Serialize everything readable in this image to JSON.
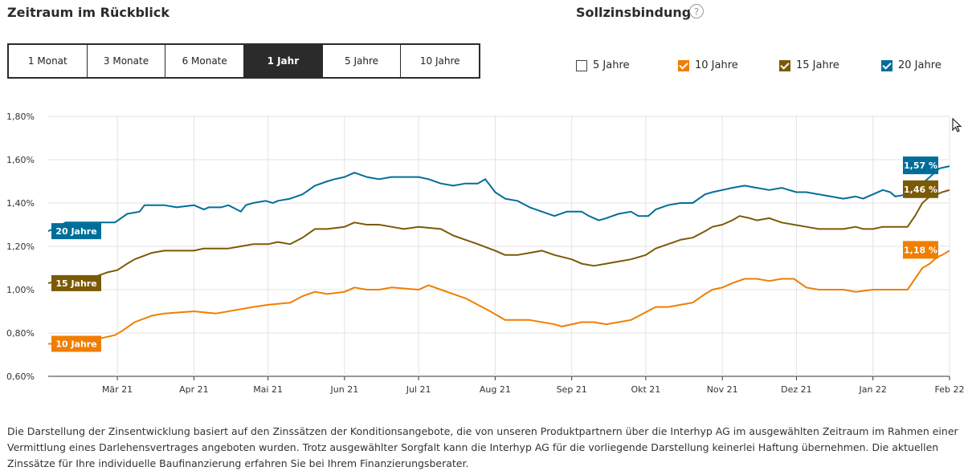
{
  "header": {
    "title": "Zeitraum im Rückblick",
    "fixation_title": "Sollzinsbindung",
    "help_glyph": "?"
  },
  "periods": [
    {
      "label": "1 Monat",
      "active": false
    },
    {
      "label": "3 Monate",
      "active": false
    },
    {
      "label": "6 Monate",
      "active": false
    },
    {
      "label": "1 Jahr",
      "active": true
    },
    {
      "label": "5 Jahre",
      "active": false
    },
    {
      "label": "10 Jahre",
      "active": false
    }
  ],
  "fixations": [
    {
      "label": "5 Jahre",
      "checked": false,
      "color": "#ffffff"
    },
    {
      "label": "10 Jahre",
      "checked": true,
      "color": "#f07e00"
    },
    {
      "label": "15 Jahre",
      "checked": true,
      "color": "#7a5a05"
    },
    {
      "label": "20 Jahre",
      "checked": true,
      "color": "#006e9a"
    }
  ],
  "chart_data": {
    "type": "line",
    "ylim": [
      0.6,
      1.8
    ],
    "yticks": [
      0.6,
      0.8,
      1.0,
      1.2,
      1.4,
      1.6,
      1.8
    ],
    "ytick_labels": [
      "0,60%",
      "0,80%",
      "1,00%",
      "1,20%",
      "1,40%",
      "1,60%",
      "1,80%"
    ],
    "xlim": [
      "2021-02-01",
      "2022-02-01"
    ],
    "xticks": [
      "2021-03-01",
      "2021-04-01",
      "2021-05-01",
      "2021-06-01",
      "2021-07-01",
      "2021-08-01",
      "2021-09-01",
      "2021-10-01",
      "2021-11-01",
      "2021-12-01",
      "2022-01-01",
      "2022-02-01"
    ],
    "xtick_labels": [
      "Mär 21",
      "Apr 21",
      "Mai 21",
      "Jun 21",
      "Jul 21",
      "Aug 21",
      "Sep 21",
      "Okt 21",
      "Nov 21",
      "Dez 21",
      "Jan 22",
      "Feb 22"
    ],
    "grid": true,
    "series": [
      {
        "name": "20 Jahre",
        "color": "#006e9a",
        "end_label": "1,57 %",
        "points": [
          [
            "2021-02-01",
            1.27
          ],
          [
            "2021-02-05",
            1.29
          ],
          [
            "2021-02-08",
            1.31
          ],
          [
            "2021-02-28",
            1.31
          ],
          [
            "2021-03-05",
            1.35
          ],
          [
            "2021-03-10",
            1.36
          ],
          [
            "2021-03-12",
            1.39
          ],
          [
            "2021-03-20",
            1.39
          ],
          [
            "2021-03-25",
            1.38
          ],
          [
            "2021-04-01",
            1.39
          ],
          [
            "2021-04-05",
            1.37
          ],
          [
            "2021-04-07",
            1.38
          ],
          [
            "2021-04-12",
            1.38
          ],
          [
            "2021-04-15",
            1.39
          ],
          [
            "2021-04-20",
            1.36
          ],
          [
            "2021-04-22",
            1.39
          ],
          [
            "2021-04-25",
            1.4
          ],
          [
            "2021-04-30",
            1.41
          ],
          [
            "2021-05-03",
            1.4
          ],
          [
            "2021-05-05",
            1.41
          ],
          [
            "2021-05-10",
            1.42
          ],
          [
            "2021-05-15",
            1.44
          ],
          [
            "2021-05-20",
            1.48
          ],
          [
            "2021-05-25",
            1.5
          ],
          [
            "2021-05-28",
            1.51
          ],
          [
            "2021-06-01",
            1.52
          ],
          [
            "2021-06-05",
            1.54
          ],
          [
            "2021-06-10",
            1.52
          ],
          [
            "2021-06-15",
            1.51
          ],
          [
            "2021-06-20",
            1.52
          ],
          [
            "2021-07-01",
            1.52
          ],
          [
            "2021-07-05",
            1.51
          ],
          [
            "2021-07-10",
            1.49
          ],
          [
            "2021-07-15",
            1.48
          ],
          [
            "2021-07-20",
            1.49
          ],
          [
            "2021-07-25",
            1.49
          ],
          [
            "2021-07-28",
            1.51
          ],
          [
            "2021-08-01",
            1.45
          ],
          [
            "2021-08-05",
            1.42
          ],
          [
            "2021-08-10",
            1.41
          ],
          [
            "2021-08-15",
            1.38
          ],
          [
            "2021-08-20",
            1.36
          ],
          [
            "2021-08-25",
            1.34
          ],
          [
            "2021-08-30",
            1.36
          ],
          [
            "2021-09-05",
            1.36
          ],
          [
            "2021-09-08",
            1.34
          ],
          [
            "2021-09-12",
            1.32
          ],
          [
            "2021-09-15",
            1.33
          ],
          [
            "2021-09-20",
            1.35
          ],
          [
            "2021-09-25",
            1.36
          ],
          [
            "2021-09-28",
            1.34
          ],
          [
            "2021-10-02",
            1.34
          ],
          [
            "2021-10-05",
            1.37
          ],
          [
            "2021-10-10",
            1.39
          ],
          [
            "2021-10-15",
            1.4
          ],
          [
            "2021-10-20",
            1.4
          ],
          [
            "2021-10-25",
            1.44
          ],
          [
            "2021-10-28",
            1.45
          ],
          [
            "2021-11-01",
            1.46
          ],
          [
            "2021-11-05",
            1.47
          ],
          [
            "2021-11-10",
            1.48
          ],
          [
            "2021-11-15",
            1.47
          ],
          [
            "2021-11-20",
            1.46
          ],
          [
            "2021-11-25",
            1.47
          ],
          [
            "2021-11-28",
            1.46
          ],
          [
            "2021-12-01",
            1.45
          ],
          [
            "2021-12-05",
            1.45
          ],
          [
            "2021-12-10",
            1.44
          ],
          [
            "2021-12-15",
            1.43
          ],
          [
            "2021-12-20",
            1.42
          ],
          [
            "2021-12-25",
            1.43
          ],
          [
            "2021-12-28",
            1.42
          ],
          [
            "2022-01-01",
            1.44
          ],
          [
            "2022-01-05",
            1.46
          ],
          [
            "2022-01-08",
            1.45
          ],
          [
            "2022-01-10",
            1.43
          ],
          [
            "2022-01-15",
            1.44
          ],
          [
            "2022-01-20",
            1.47
          ],
          [
            "2022-01-22",
            1.5
          ],
          [
            "2022-01-25",
            1.53
          ],
          [
            "2022-01-28",
            1.56
          ],
          [
            "2022-02-01",
            1.57
          ]
        ]
      },
      {
        "name": "15 Jahre",
        "color": "#7a5a05",
        "end_label": "1,46 %",
        "points": [
          [
            "2021-02-01",
            1.03
          ],
          [
            "2021-02-05",
            1.04
          ],
          [
            "2021-02-10",
            1.05
          ],
          [
            "2021-02-20",
            1.06
          ],
          [
            "2021-02-25",
            1.08
          ],
          [
            "2021-03-01",
            1.09
          ],
          [
            "2021-03-05",
            1.12
          ],
          [
            "2021-03-08",
            1.14
          ],
          [
            "2021-03-15",
            1.17
          ],
          [
            "2021-03-20",
            1.18
          ],
          [
            "2021-04-01",
            1.18
          ],
          [
            "2021-04-05",
            1.19
          ],
          [
            "2021-04-15",
            1.19
          ],
          [
            "2021-04-20",
            1.2
          ],
          [
            "2021-04-25",
            1.21
          ],
          [
            "2021-05-01",
            1.21
          ],
          [
            "2021-05-05",
            1.22
          ],
          [
            "2021-05-10",
            1.21
          ],
          [
            "2021-05-15",
            1.24
          ],
          [
            "2021-05-20",
            1.28
          ],
          [
            "2021-05-25",
            1.28
          ],
          [
            "2021-06-01",
            1.29
          ],
          [
            "2021-06-05",
            1.31
          ],
          [
            "2021-06-10",
            1.3
          ],
          [
            "2021-06-15",
            1.3
          ],
          [
            "2021-06-20",
            1.29
          ],
          [
            "2021-06-25",
            1.28
          ],
          [
            "2021-07-01",
            1.29
          ],
          [
            "2021-07-10",
            1.28
          ],
          [
            "2021-07-15",
            1.25
          ],
          [
            "2021-07-20",
            1.23
          ],
          [
            "2021-07-25",
            1.21
          ],
          [
            "2021-08-01",
            1.18
          ],
          [
            "2021-08-05",
            1.16
          ],
          [
            "2021-08-10",
            1.16
          ],
          [
            "2021-08-15",
            1.17
          ],
          [
            "2021-08-20",
            1.18
          ],
          [
            "2021-08-25",
            1.16
          ],
          [
            "2021-09-01",
            1.14
          ],
          [
            "2021-09-05",
            1.12
          ],
          [
            "2021-09-10",
            1.11
          ],
          [
            "2021-09-15",
            1.12
          ],
          [
            "2021-09-20",
            1.13
          ],
          [
            "2021-09-25",
            1.14
          ],
          [
            "2021-10-01",
            1.16
          ],
          [
            "2021-10-05",
            1.19
          ],
          [
            "2021-10-10",
            1.21
          ],
          [
            "2021-10-15",
            1.23
          ],
          [
            "2021-10-20",
            1.24
          ],
          [
            "2021-10-25",
            1.27
          ],
          [
            "2021-10-28",
            1.29
          ],
          [
            "2021-11-01",
            1.3
          ],
          [
            "2021-11-05",
            1.32
          ],
          [
            "2021-11-08",
            1.34
          ],
          [
            "2021-11-12",
            1.33
          ],
          [
            "2021-11-15",
            1.32
          ],
          [
            "2021-11-20",
            1.33
          ],
          [
            "2021-11-25",
            1.31
          ],
          [
            "2021-11-30",
            1.3
          ],
          [
            "2021-12-05",
            1.29
          ],
          [
            "2021-12-10",
            1.28
          ],
          [
            "2021-12-15",
            1.28
          ],
          [
            "2021-12-20",
            1.28
          ],
          [
            "2021-12-25",
            1.29
          ],
          [
            "2021-12-28",
            1.28
          ],
          [
            "2022-01-01",
            1.28
          ],
          [
            "2022-01-05",
            1.29
          ],
          [
            "2022-01-10",
            1.29
          ],
          [
            "2022-01-15",
            1.29
          ],
          [
            "2022-01-18",
            1.34
          ],
          [
            "2022-01-21",
            1.4
          ],
          [
            "2022-01-24",
            1.43
          ],
          [
            "2022-01-27",
            1.44
          ],
          [
            "2022-01-29",
            1.45
          ],
          [
            "2022-02-01",
            1.46
          ]
        ]
      },
      {
        "name": "10 Jahre",
        "color": "#f07e00",
        "end_label": "1,18 %",
        "points": [
          [
            "2021-02-01",
            0.75
          ],
          [
            "2021-02-10",
            0.75
          ],
          [
            "2021-02-20",
            0.77
          ],
          [
            "2021-02-28",
            0.79
          ],
          [
            "2021-03-03",
            0.81
          ],
          [
            "2021-03-08",
            0.85
          ],
          [
            "2021-03-15",
            0.88
          ],
          [
            "2021-03-20",
            0.89
          ],
          [
            "2021-04-01",
            0.9
          ],
          [
            "2021-04-10",
            0.89
          ],
          [
            "2021-04-20",
            0.91
          ],
          [
            "2021-04-25",
            0.92
          ],
          [
            "2021-05-01",
            0.93
          ],
          [
            "2021-05-10",
            0.94
          ],
          [
            "2021-05-15",
            0.97
          ],
          [
            "2021-05-20",
            0.99
          ],
          [
            "2021-05-25",
            0.98
          ],
          [
            "2021-06-01",
            0.99
          ],
          [
            "2021-06-05",
            1.01
          ],
          [
            "2021-06-10",
            1.0
          ],
          [
            "2021-06-15",
            1.0
          ],
          [
            "2021-06-20",
            1.01
          ],
          [
            "2021-07-01",
            1.0
          ],
          [
            "2021-07-05",
            1.02
          ],
          [
            "2021-07-10",
            1.0
          ],
          [
            "2021-07-15",
            0.98
          ],
          [
            "2021-07-20",
            0.96
          ],
          [
            "2021-07-25",
            0.93
          ],
          [
            "2021-07-30",
            0.9
          ],
          [
            "2021-08-05",
            0.86
          ],
          [
            "2021-08-15",
            0.86
          ],
          [
            "2021-08-25",
            0.84
          ],
          [
            "2021-08-28",
            0.83
          ],
          [
            "2021-09-05",
            0.85
          ],
          [
            "2021-09-10",
            0.85
          ],
          [
            "2021-09-15",
            0.84
          ],
          [
            "2021-09-20",
            0.85
          ],
          [
            "2021-09-25",
            0.86
          ],
          [
            "2021-09-30",
            0.89
          ],
          [
            "2021-10-05",
            0.92
          ],
          [
            "2021-10-10",
            0.92
          ],
          [
            "2021-10-15",
            0.93
          ],
          [
            "2021-10-20",
            0.94
          ],
          [
            "2021-10-25",
            0.98
          ],
          [
            "2021-10-28",
            1.0
          ],
          [
            "2021-11-01",
            1.01
          ],
          [
            "2021-11-05",
            1.03
          ],
          [
            "2021-11-10",
            1.05
          ],
          [
            "2021-11-15",
            1.05
          ],
          [
            "2021-11-20",
            1.04
          ],
          [
            "2021-11-25",
            1.05
          ],
          [
            "2021-11-30",
            1.05
          ],
          [
            "2021-12-05",
            1.01
          ],
          [
            "2021-12-10",
            1.0
          ],
          [
            "2021-12-15",
            1.0
          ],
          [
            "2021-12-20",
            1.0
          ],
          [
            "2021-12-25",
            0.99
          ],
          [
            "2022-01-01",
            1.0
          ],
          [
            "2022-01-10",
            1.0
          ],
          [
            "2022-01-15",
            1.0
          ],
          [
            "2022-01-18",
            1.05
          ],
          [
            "2022-01-21",
            1.1
          ],
          [
            "2022-01-24",
            1.12
          ],
          [
            "2022-01-27",
            1.15
          ],
          [
            "2022-01-29",
            1.16
          ],
          [
            "2022-02-01",
            1.18
          ]
        ]
      }
    ]
  },
  "disclaimer": "Die Darstellung der Zinsentwicklung basiert auf den Zinssätzen der Konditionsangebote, die von unseren Produktpartnern über die Interhyp AG im ausgewählten Zeitraum im Rahmen einer Vermittlung eines Darlehensvertrages angeboten wurden. Trotz ausgewählter Sorgfalt kann die Interhyp AG für die vorliegende Darstellung keinerlei Haftung übernehmen. Die aktuellen Zinssätze für Ihre individuelle Baufinanzierung erfahren Sie bei Ihrem Finanzierungsberater."
}
